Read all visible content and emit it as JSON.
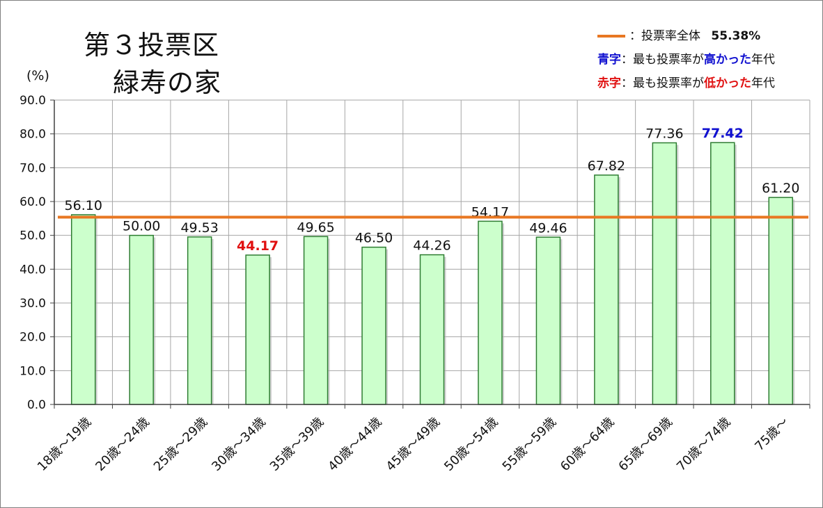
{
  "title_line1": "第３投票区",
  "title_line2": "緑寿の家",
  "unit_label": "(%)",
  "legend": {
    "overall_label": "：投票率全体",
    "overall_value": "55.38%",
    "blue_key": "青字",
    "blue_text_a": "：最も投票率が",
    "blue_text_b": "高かった",
    "blue_text_c": "年代",
    "red_key": "赤字",
    "red_text_a": "：最も投票率が",
    "red_text_b": "低かった",
    "red_text_c": "年代"
  },
  "colors": {
    "bar_fill": "#ccffcc",
    "bar_stroke": "#2e7d32",
    "average_line": "#e87722",
    "highest": "#1010d0",
    "lowest": "#e01010",
    "grid": "#a6a6a6"
  },
  "chart_data": {
    "type": "bar",
    "categories": [
      "18歳～19歳",
      "20歳～24歳",
      "25歳～29歳",
      "30歳～34歳",
      "35歳～39歳",
      "40歳～44歳",
      "45歳～49歳",
      "50歳～54歳",
      "55歳～59歳",
      "60歳～64歳",
      "65歳～69歳",
      "70歳～74歳",
      "75歳～"
    ],
    "values": [
      56.1,
      50.0,
      49.53,
      44.17,
      49.65,
      46.5,
      44.26,
      54.17,
      49.46,
      67.82,
      77.36,
      77.42,
      61.2
    ],
    "value_labels": [
      "56.10",
      "50.00",
      "49.53",
      "44.17",
      "49.65",
      "46.50",
      "44.26",
      "54.17",
      "49.46",
      "67.82",
      "77.36",
      "77.42",
      "61.20"
    ],
    "highest_index": 11,
    "lowest_index": 3,
    "reference_line": 55.38,
    "ylim": [
      0,
      90
    ],
    "yticks": [
      "0.0",
      "10.0",
      "20.0",
      "30.0",
      "40.0",
      "50.0",
      "60.0",
      "70.0",
      "80.0",
      "90.0"
    ],
    "grid": true
  }
}
